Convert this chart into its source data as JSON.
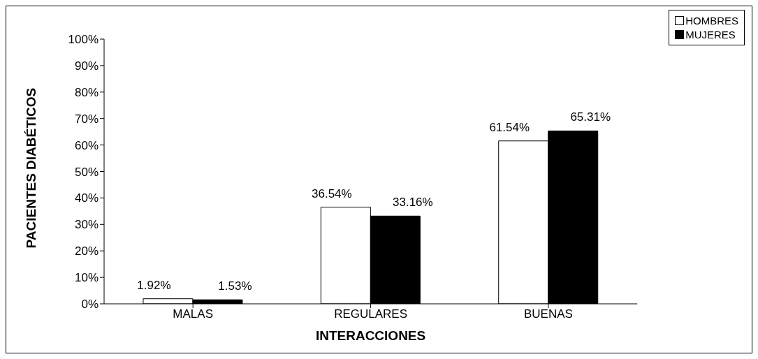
{
  "chart_data": {
    "type": "bar",
    "xlabel": "INTERACCIONES",
    "ylabel": "PACIENTES DIABÉTICOS",
    "categories": [
      "MALAS",
      "REGULARES",
      "BUENAS"
    ],
    "series": [
      {
        "name": "HOMBRES",
        "color": "#ffffff",
        "values": [
          1.92,
          36.54,
          61.54
        ],
        "value_labels": [
          "1.92%",
          "36.54%",
          "61.54%"
        ]
      },
      {
        "name": "MUJERES",
        "color": "#000000",
        "values": [
          1.53,
          33.16,
          65.31
        ],
        "value_labels": [
          "1.53%",
          "33.16%",
          "65.31%"
        ]
      }
    ],
    "ylim": [
      0,
      100
    ],
    "yticks": [
      {
        "value": 0,
        "label": "0%"
      },
      {
        "value": 10,
        "label": "10%"
      },
      {
        "value": 20,
        "label": "20%"
      },
      {
        "value": 30,
        "label": "30%"
      },
      {
        "value": 40,
        "label": "40%"
      },
      {
        "value": 50,
        "label": "50%"
      },
      {
        "value": 60,
        "label": "60%"
      },
      {
        "value": 70,
        "label": "70%"
      },
      {
        "value": 80,
        "label": "80%"
      },
      {
        "value": 90,
        "label": "90%"
      },
      {
        "value": 100,
        "label": "100%"
      }
    ],
    "grid": false,
    "legend": "top right"
  }
}
